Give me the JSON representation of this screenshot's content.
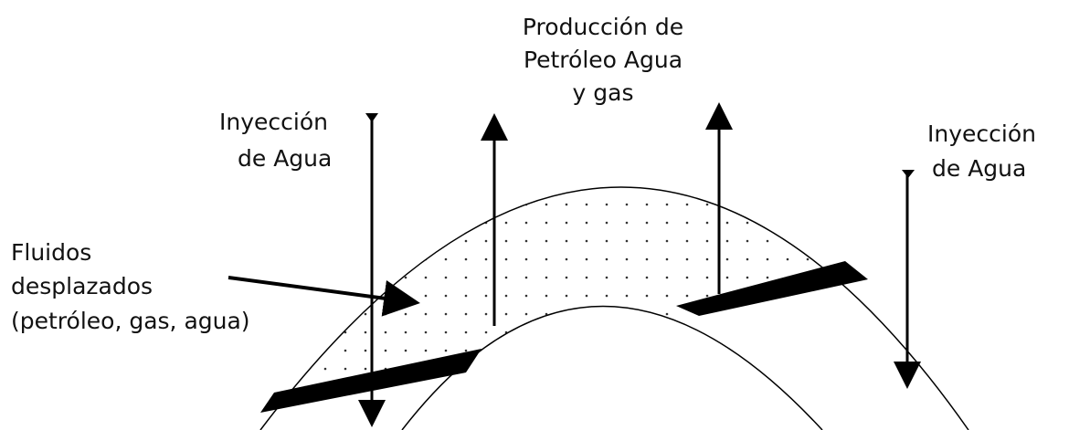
{
  "labels": {
    "production": [
      "Producción de",
      "Petróleo Agua",
      "y gas"
    ],
    "injection_left": [
      "Inyección",
      "de Agua"
    ],
    "injection_right": [
      "Inyección",
      "de Agua"
    ],
    "displaced_fluids": [
      "Fluidos",
      "desplazados",
      "(petróleo, gas, agua)"
    ]
  }
}
